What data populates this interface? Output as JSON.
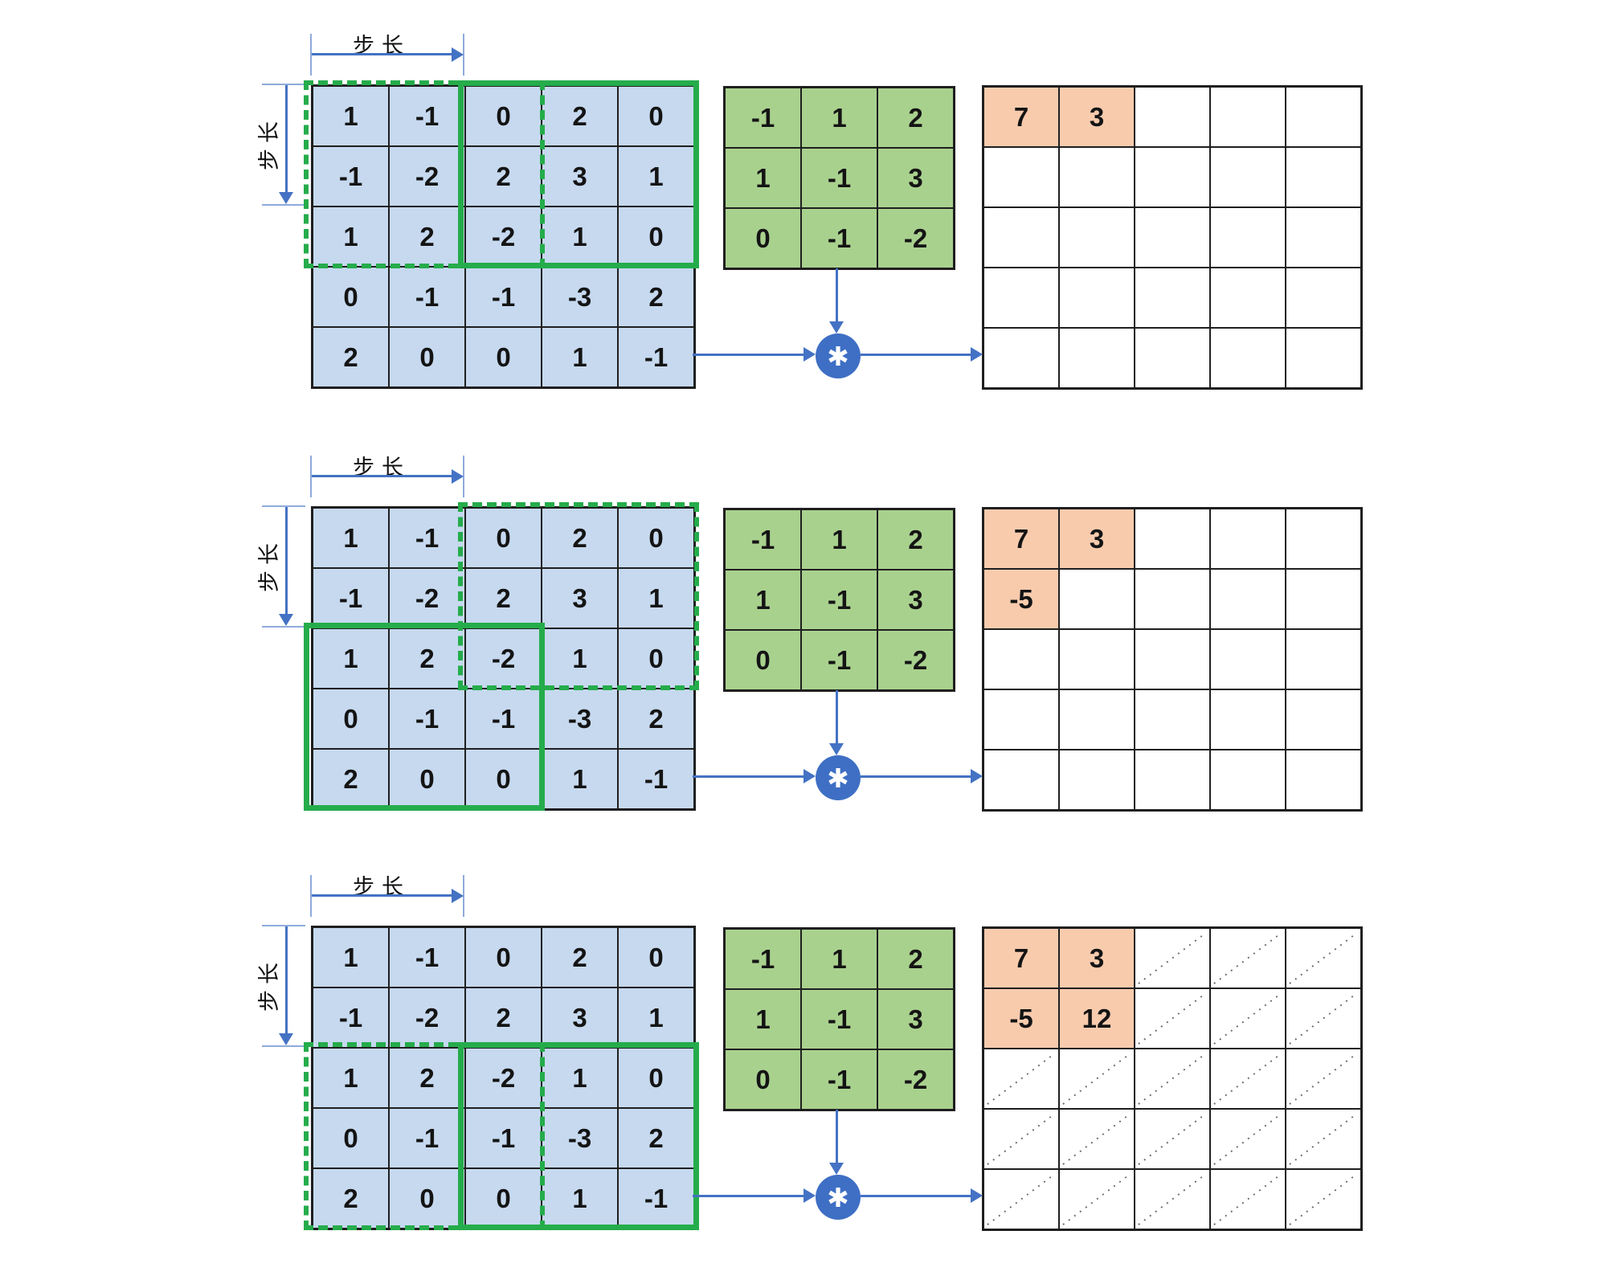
{
  "labels": {
    "stride_horizontal": "步长",
    "stride_vertical": "步长",
    "operator": "✱"
  },
  "colors": {
    "input_cell_blue": "#C6D9EF",
    "kernel_cell_green": "#A9D18E",
    "output_highlight_orange": "#F8CBAD",
    "window_green": "#25AC4B",
    "arrow_blue": "#4472C4",
    "tick_light_blue": "#8FAADC",
    "grid_border": "#1f1f1f"
  },
  "input_matrix": [
    [
      1,
      -1,
      0,
      2,
      0
    ],
    [
      -1,
      -2,
      2,
      3,
      1
    ],
    [
      1,
      2,
      -2,
      1,
      0
    ],
    [
      0,
      -1,
      -1,
      -3,
      2
    ],
    [
      2,
      0,
      0,
      1,
      -1
    ]
  ],
  "kernel": [
    [
      -1,
      1,
      2
    ],
    [
      1,
      -1,
      3
    ],
    [
      0,
      -1,
      -2
    ]
  ],
  "panels": [
    {
      "name": "convolution-step-1",
      "window_dashed": "rows 1-3, cols 1-3",
      "window_solid": "rows 1-3, cols 3-5",
      "dotted_empty": false,
      "output": [
        [
          "7",
          "3",
          "",
          "",
          ""
        ],
        [
          "",
          "",
          "",
          "",
          ""
        ],
        [
          "",
          "",
          "",
          "",
          ""
        ],
        [
          "",
          "",
          "",
          "",
          ""
        ],
        [
          "",
          "",
          "",
          "",
          ""
        ]
      ]
    },
    {
      "name": "convolution-step-2",
      "window_dashed": "rows 1-3, cols 3-5",
      "window_solid": "rows 3-5, cols 1-3",
      "dotted_empty": false,
      "output": [
        [
          "7",
          "3",
          "",
          "",
          ""
        ],
        [
          "-5",
          "",
          "",
          "",
          ""
        ],
        [
          "",
          "",
          "",
          "",
          ""
        ],
        [
          "",
          "",
          "",
          "",
          ""
        ],
        [
          "",
          "",
          "",
          "",
          ""
        ]
      ]
    },
    {
      "name": "convolution-step-3",
      "window_dashed": "rows 3-5, cols 1-3",
      "window_solid": "rows 3-5, cols 3-5",
      "dotted_empty": true,
      "output": [
        [
          "7",
          "3",
          "",
          "",
          ""
        ],
        [
          "-5",
          "12",
          "",
          "",
          ""
        ],
        [
          "",
          "",
          "",
          "",
          ""
        ],
        [
          "",
          "",
          "",
          "",
          ""
        ],
        [
          "",
          "",
          "",
          "",
          ""
        ]
      ]
    }
  ]
}
